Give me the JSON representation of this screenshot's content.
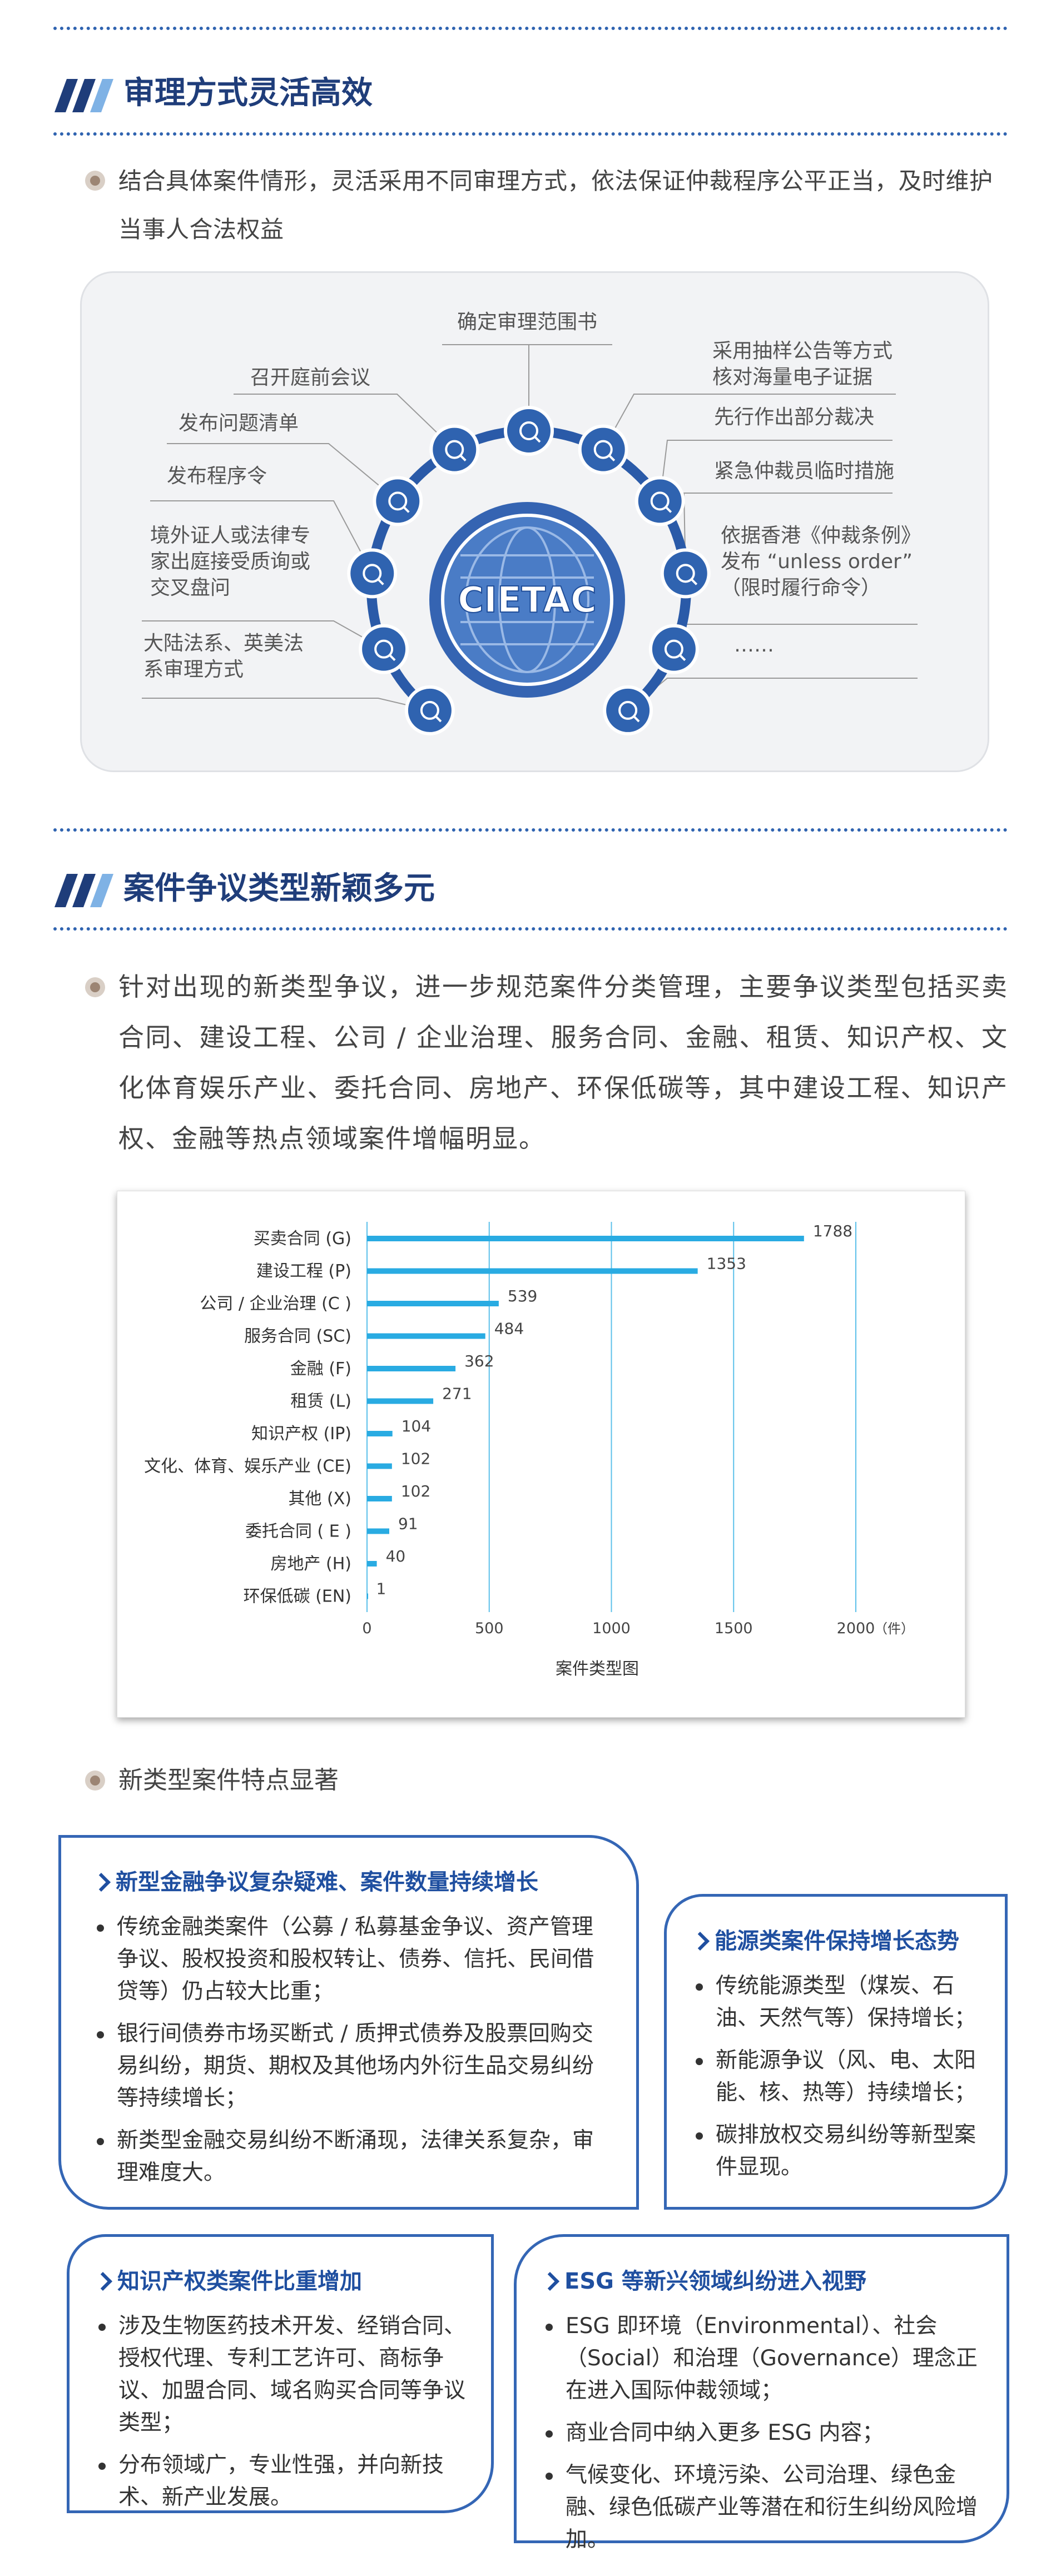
{
  "section1": {
    "title": "审理方式灵活高效",
    "bullet": "结合具体案件情形，灵活采用不同审理方式，依法保证仲裁程序公平正当，及时维护当事人合法权益",
    "diagram": {
      "center": "CIETAC",
      "top": [
        "确定审理范围书"
      ],
      "left": [
        [
          "召开庭前会议"
        ],
        [
          "发布问题清单"
        ],
        [
          "发布程序令"
        ],
        [
          "境外证人或法律专",
          "家出庭接受质询或",
          "交叉盘问"
        ],
        [
          "大陆法系、英美法",
          "系审理方式"
        ]
      ],
      "right": [
        [
          "采用抽样公告等方式",
          "核对海量电子证据"
        ],
        [
          "先行作出部分裁决"
        ],
        [
          "紧急仲裁员临时措施"
        ],
        [
          "依据香港《仲裁条例》",
          "发布 “unless order”",
          "（限时履行命令）"
        ],
        [
          "……"
        ]
      ]
    }
  },
  "section2": {
    "title": "案件争议类型新颖多元",
    "bullet": "针对出现的新类型争议，进一步规范案件分类管理，主要争议类型包括买卖合同、建设工程、公司 / 企业治理、服务合同、金融、租赁、知识产权、文化体育娱乐产业、委托合同、房地产、环保低碳等，其中建设工程、知识产权、金融等热点领域案件增幅明显。"
  },
  "chart_data": {
    "type": "bar",
    "orientation": "horizontal",
    "categories": [
      "买卖合同 (G)",
      "建设工程 (P)",
      "公司 / 企业治理 (C )",
      "服务合同 (SC)",
      "金融 (F)",
      "租赁 (L)",
      "知识产权 (IP)",
      "文化、体育、娱乐产业 (CE)",
      "其他 (X)",
      "委托合同 ( E )",
      "房地产 (H)",
      "环保低碳 (EN)"
    ],
    "values": [
      1788,
      1353,
      539,
      484,
      362,
      271,
      104,
      102,
      102,
      91,
      40,
      1
    ],
    "color": "#29abe2",
    "xlim": [
      0,
      2000
    ],
    "xticks": [
      0,
      500,
      1000,
      1500,
      2000
    ],
    "x_unit": "（件）",
    "xlabel": "案件类型图",
    "grid": true
  },
  "section3": {
    "title": "新类型案件特点显著",
    "boxes": [
      {
        "title": "新型金融争议复杂疑难、案件数量持续增长",
        "items": [
          "传统金融类案件（公募 / 私募基金争议、资产管理争议、股权投资和股权转让、债券、信托、民间借贷等）仍占较大比重；",
          "银行间债券市场买断式 / 质押式债券及股票回购交易纠纷，期货、期权及其他场内外衍生品交易纠纷等持续增长；",
          "新类型金融交易纠纷不断涌现，法律关系复杂，审理难度大。"
        ]
      },
      {
        "title": "能源类案件保持增长态势",
        "items": [
          "传统能源类型（煤炭、石油、天然气等）保持增长；",
          "新能源争议（风、电、太阳能、核、热等）持续增长；",
          "碳排放权交易纠纷等新型案件显现。"
        ]
      },
      {
        "title": "知识产权类案件比重增加",
        "items": [
          "涉及生物医药技术开发、经销合同、授权代理、专利工艺许可、商标争议、加盟合同、域名购买合同等争议类型；",
          "分布领域广，专业性强，并向新技术、新产业发展。"
        ]
      },
      {
        "title": "ESG 等新兴领域纠纷进入视野",
        "items": [
          "ESG 即环境（Environmental）、社会（Social）和治理（Governance）理念正在进入国际仲裁领域；",
          "商业合同中纳入更多 ESG 内容；",
          "气候变化、环境污染、公司治理、绿色金融、绿色低碳产业等潜在和衍生纠纷风险增加。"
        ]
      }
    ]
  }
}
